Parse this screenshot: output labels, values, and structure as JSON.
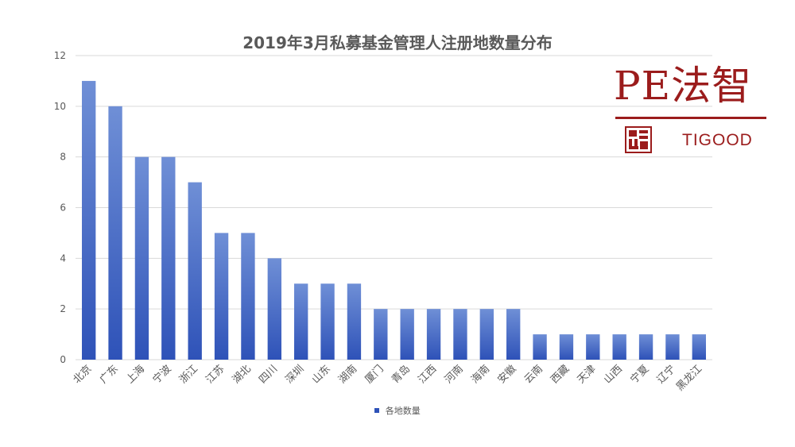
{
  "chart_data": {
    "type": "bar",
    "title": "2019年3月私募基金管理人注册地数量分布",
    "categories": [
      "北京",
      "广东",
      "上海",
      "宁波",
      "浙江",
      "江苏",
      "湖北",
      "四川",
      "深圳",
      "山东",
      "湖南",
      "厦门",
      "青岛",
      "江西",
      "河南",
      "海南",
      "安徽",
      "云南",
      "西藏",
      "天津",
      "山西",
      "宁夏",
      "辽宁",
      "黑龙江"
    ],
    "series": [
      {
        "name": "各地数量",
        "values": [
          11,
          10,
          8,
          8,
          7,
          5,
          5,
          4,
          3,
          3,
          3,
          2,
          2,
          2,
          2,
          2,
          2,
          1,
          1,
          1,
          1,
          1,
          1,
          1
        ]
      }
    ],
    "ylim": [
      0,
      12
    ],
    "yticks": [
      0,
      2,
      4,
      6,
      8,
      10,
      12
    ],
    "grid": true,
    "legend_position": "bottom",
    "colors": {
      "bar_top": "#6F8FD6",
      "bar_bottom": "#2E52B8",
      "grid": "#D9D9D9",
      "axis_text": "#595959",
      "title": "#595959"
    }
  },
  "logo": {
    "name": "PE法智",
    "subtitle": "TIGOOD",
    "color": "#9B1C1C"
  }
}
